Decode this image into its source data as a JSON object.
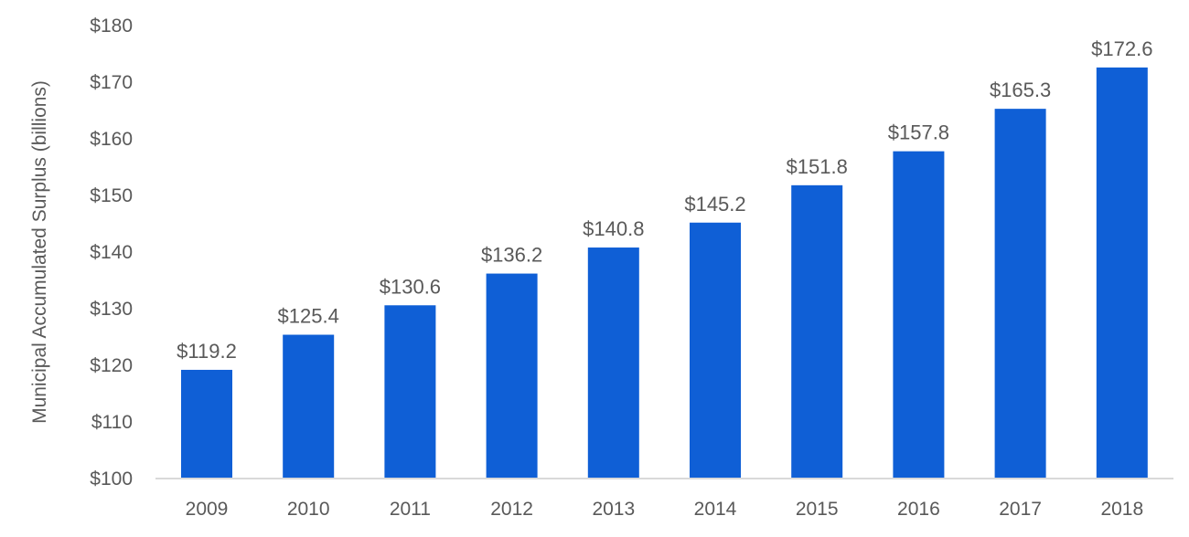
{
  "chart_data": {
    "type": "bar",
    "title": "",
    "xlabel": "",
    "ylabel": "Municipal Accumulated Surplus (billions)",
    "categories": [
      "2009",
      "2010",
      "2011",
      "2012",
      "2013",
      "2014",
      "2015",
      "2016",
      "2017",
      "2018"
    ],
    "values": [
      119.2,
      125.4,
      130.6,
      136.2,
      140.8,
      145.2,
      151.8,
      157.8,
      165.3,
      172.6
    ],
    "data_labels": [
      "$119.2",
      "$125.4",
      "$130.6",
      "$136.2",
      "$140.8",
      "$145.2",
      "$151.8",
      "$157.8",
      "$165.3",
      "$172.6"
    ],
    "ylim": [
      100,
      180
    ],
    "yticks": [
      100,
      110,
      120,
      130,
      140,
      150,
      160,
      170,
      180
    ],
    "ytick_labels": [
      "$100",
      "$110",
      "$120",
      "$130",
      "$140",
      "$150",
      "$160",
      "$170",
      "$180"
    ],
    "grid": false,
    "legend": "none",
    "colors": {
      "bar": "#0F5FD6",
      "axis": "#D9D9D9",
      "text": "#595959"
    }
  }
}
